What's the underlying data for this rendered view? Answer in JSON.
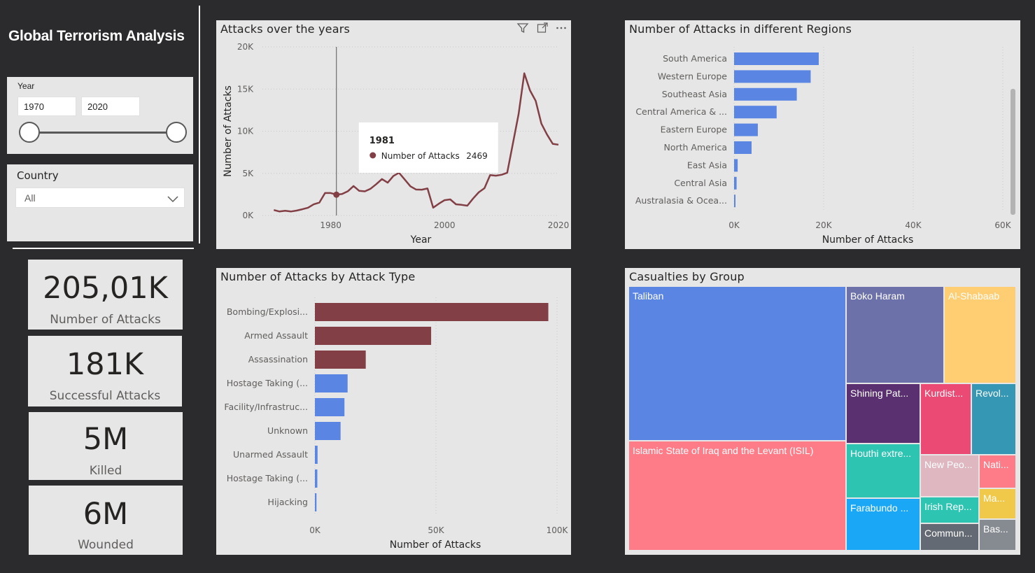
{
  "dashboard": {
    "title": "Global Terrorism Analysis"
  },
  "year_slicer": {
    "label": "Year",
    "start": "1970",
    "end": "2020"
  },
  "country_slicer": {
    "label": "Country",
    "value": "All"
  },
  "cards": [
    {
      "value": "205,01K",
      "label": "Number of Attacks"
    },
    {
      "value": "181K",
      "label": "Successful Attacks"
    },
    {
      "value": "5M",
      "label": "Killed"
    },
    {
      "value": "6M",
      "label": "Wounded"
    }
  ],
  "visual_header_icons": [
    "filter-icon",
    "focus-mode-icon",
    "more-options-icon"
  ],
  "chart_data": [
    {
      "type": "line",
      "title": "Attacks over the years",
      "xlabel": "Year",
      "ylabel": "Number of Attacks",
      "xlim": [
        1968,
        2020
      ],
      "ylim": [
        0,
        20000
      ],
      "x_ticks": [
        "1980",
        "2000",
        "2020"
      ],
      "y_ticks": [
        "0K",
        "5K",
        "10K",
        "15K",
        "20K"
      ],
      "color": "#823f45",
      "x": [
        1970,
        1971,
        1972,
        1973,
        1974,
        1975,
        1976,
        1977,
        1978,
        1979,
        1980,
        1981,
        1982,
        1983,
        1984,
        1985,
        1986,
        1987,
        1988,
        1989,
        1990,
        1991,
        1992,
        1994,
        1995,
        1996,
        1997,
        1998,
        1999,
        2000,
        2001,
        2002,
        2003,
        2004,
        2005,
        2006,
        2007,
        2008,
        2009,
        2010,
        2011,
        2012,
        2013,
        2014,
        2015,
        2016,
        2017,
        2018,
        2019,
        2020
      ],
      "values": [
        650,
        470,
        560,
        470,
        580,
        740,
        920,
        1320,
        1530,
        2660,
        2660,
        2469,
        2550,
        2870,
        3490,
        2920,
        2860,
        3180,
        3720,
        4320,
        3890,
        4680,
        5070,
        3460,
        3080,
        3060,
        3200,
        930,
        1400,
        1820,
        1910,
        1330,
        1260,
        1160,
        2010,
        2750,
        3240,
        4800,
        4720,
        4830,
        5070,
        8520,
        12040,
        16860,
        14850,
        13590,
        10900,
        9600,
        8500,
        8400
      ],
      "tooltip": {
        "year": "1981",
        "series": "Number of Attacks",
        "value": "2469"
      }
    },
    {
      "type": "bar",
      "title": "Number of Attacks in different Regions",
      "xlabel": "Number of Attacks",
      "ylabel": "",
      "xlim": [
        0,
        60000
      ],
      "x_ticks": [
        "0K",
        "20K",
        "40K",
        "60K"
      ],
      "color": "#5b85e3",
      "categories": [
        "South America",
        "Western Europe",
        "Southeast Asia",
        "Central America & ...",
        "Eastern Europe",
        "North America",
        "East Asia",
        "Central Asia",
        "Australasia & Ocea..."
      ],
      "values": [
        18900,
        17100,
        14000,
        9500,
        5300,
        3900,
        800,
        560,
        280
      ]
    },
    {
      "type": "bar",
      "title": "Number of Attacks by Attack Type",
      "xlabel": "Number of Attacks",
      "ylabel": "",
      "xlim": [
        0,
        100000
      ],
      "x_ticks": [
        "0K",
        "50K",
        "100K"
      ],
      "categories": [
        "Bombing/Explosi...",
        "Armed Assault",
        "Assassination",
        "Hostage Taking (...",
        "Facility/Infrastruc...",
        "Unknown",
        "Unarmed Assault",
        "Hostage Taking (...",
        "Hijacking"
      ],
      "values": [
        96400,
        48000,
        21000,
        13500,
        12200,
        10600,
        1100,
        1000,
        650
      ],
      "colors": [
        "#823f45",
        "#823f45",
        "#823f45",
        "#5b85e3",
        "#5b85e3",
        "#5b85e3",
        "#5b85e3",
        "#5b85e3",
        "#5b85e3"
      ]
    },
    {
      "type": "treemap",
      "title": "Casualties by Group",
      "items": [
        {
          "name": "Taliban",
          "color": "#5b85e3"
        },
        {
          "name": "Islamic State of Iraq and the Levant (ISIL)",
          "color": "#fd7c88"
        },
        {
          "name": "Boko Haram",
          "color": "#6d71a9"
        },
        {
          "name": "Al-Shabaab",
          "color": "#ffce73"
        },
        {
          "name": "Shining Pat...",
          "color": "#5a3070"
        },
        {
          "name": "Kurdist...",
          "color": "#ea4a74"
        },
        {
          "name": "Revol...",
          "color": "#3597b4"
        },
        {
          "name": "Houthi extre...",
          "color": "#2ec4b2"
        },
        {
          "name": "New Peo...",
          "color": "#deb7c1"
        },
        {
          "name": "Nati...",
          "color": "#fd7c88"
        },
        {
          "name": "Farabundo ...",
          "color": "#1aa8f6"
        },
        {
          "name": "Irish Rep...",
          "color": "#2ec4b2"
        },
        {
          "name": "Ma...",
          "color": "#f0c94a"
        },
        {
          "name": "Commun...",
          "color": "#646a73"
        },
        {
          "name": "Bas...",
          "color": "#868b91"
        }
      ]
    }
  ]
}
